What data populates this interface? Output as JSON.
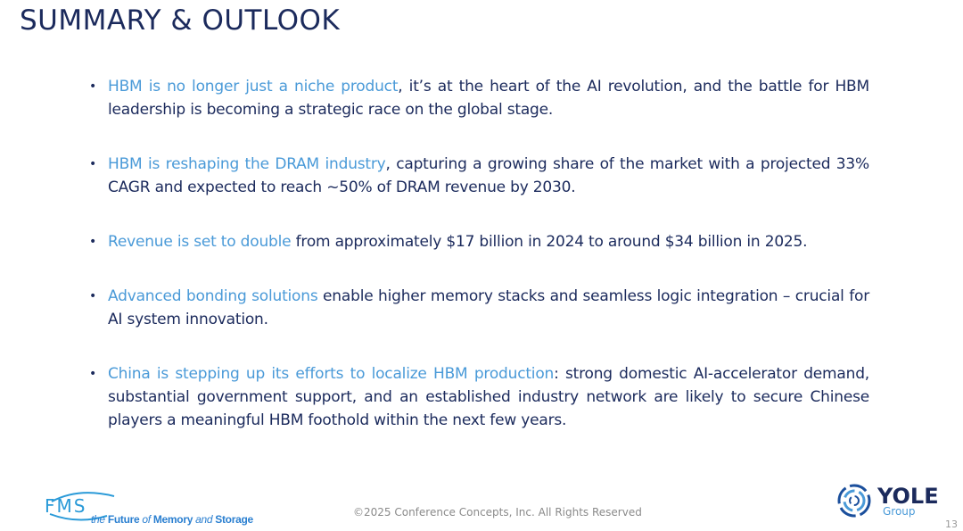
{
  "title": "SUMMARY & OUTLOOK",
  "bullets": [
    {
      "highlight": "HBM is no longer just a niche product",
      "text": ", it’s at the heart of the AI revolution, and the battle for HBM leadership is becoming a strategic race on the global stage."
    },
    {
      "highlight": "HBM is reshaping the DRAM industry",
      "text": ", capturing a growing share of the market with a projected 33% CAGR and expected to reach ~50% of DRAM revenue by 2030."
    },
    {
      "highlight": "Revenue is set to double",
      "text": " from approximately $17 billion in 2024 to around $34 billion in 2025."
    },
    {
      "highlight": "Advanced bonding solutions",
      "text": " enable higher memory stacks and seamless logic integration – crucial for AI system innovation."
    },
    {
      "highlight": "China is stepping up its efforts to localize HBM production",
      "text": ": strong domestic AI-accelerator demand, substantial government support, and an established industry network are likely to secure Chinese players a meaningful HBM foothold within the next few years."
    }
  ],
  "footer": {
    "copyright": "©2025 Conference Concepts, Inc. All Rights Reserved",
    "page_number": "13",
    "fms_logo": "FMS",
    "fms_tagline": {
      "a": "the ",
      "b": "Future ",
      "c": "of ",
      "d": "Memory ",
      "e": "and ",
      "f": "Storage"
    },
    "yole_logo": "YOLE",
    "yole_group": "Group"
  },
  "colors": {
    "navy": "#1b2a5c",
    "accent": "#4a9ad8"
  }
}
